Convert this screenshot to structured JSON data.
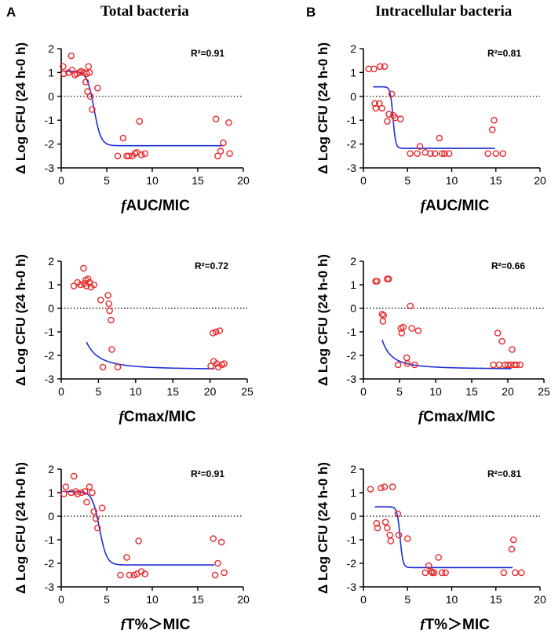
{
  "panel_labels": {
    "left": "A",
    "right": "B"
  },
  "column_titles": {
    "left": "Total bacteria",
    "right": "Intracellular bacteria"
  },
  "colors": {
    "points": "#e8292b",
    "fit": "#1f2fd6",
    "axis": "#000000"
  },
  "chart_data": [
    {
      "id": "A1",
      "type": "scatter",
      "xlabel_prefix": "f",
      "xlabel": "AUC/MIC",
      "ylabel": "Δ Log CFU (24 h-0 h)",
      "annotation": "R²=0.91",
      "xlim": [
        0,
        20
      ],
      "ylim": [
        -3,
        2
      ],
      "xticks": [
        0,
        5,
        10,
        15,
        20
      ],
      "yticks": [
        -3,
        -2,
        -1,
        0,
        1,
        2
      ],
      "x": [
        0.2,
        0.3,
        0.8,
        1.1,
        1.2,
        1.5,
        1.7,
        2.0,
        2.2,
        2.5,
        2.7,
        2.8,
        2.9,
        3.0,
        3.1,
        3.2,
        3.4,
        4.0,
        6.2,
        6.8,
        7.2,
        7.4,
        7.8,
        8.1,
        8.3,
        8.6,
        8.8,
        9.2,
        17.0,
        17.2,
        17.5,
        17.8,
        18.4,
        18.5
      ],
      "y": [
        1.25,
        0.95,
        1.0,
        1.7,
        1.1,
        0.9,
        0.95,
        1.0,
        1.05,
        1.0,
        0.6,
        0.95,
        0.2,
        1.25,
        1.0,
        0.0,
        -0.55,
        0.35,
        -2.5,
        -1.75,
        -2.5,
        -2.5,
        -2.5,
        -2.4,
        -2.35,
        -1.05,
        -2.45,
        -2.4,
        -0.95,
        -2.5,
        -2.3,
        -1.95,
        -1.1,
        -2.4
      ],
      "fit": {
        "model": "sigmoid",
        "top": 1.05,
        "bottom": -2.07,
        "x50": 3.6,
        "k": 2.6,
        "xmin": 0.3,
        "xmax": 17.8
      }
    },
    {
      "id": "A2",
      "type": "scatter",
      "xlabel_prefix": "f",
      "xlabel": "Cmax/MIC",
      "ylabel": "Δ Log CFU (24 h-0 h)",
      "annotation": "R²=0.72",
      "xlim": [
        0,
        25
      ],
      "ylim": [
        -3,
        2
      ],
      "xticks": [
        0,
        5,
        10,
        15,
        20,
        25
      ],
      "yticks": [
        -3,
        -2,
        -1,
        0,
        1,
        2
      ],
      "x": [
        1.7,
        2.2,
        2.6,
        3.0,
        3.1,
        3.3,
        3.4,
        3.6,
        3.8,
        4.0,
        4.4,
        5.3,
        5.6,
        6.3,
        6.4,
        6.5,
        6.7,
        6.8,
        7.6,
        20.1,
        20.4,
        20.5,
        20.8,
        20.9,
        21.1,
        21.3,
        21.6,
        21.9
      ],
      "y": [
        0.95,
        1.1,
        1.0,
        1.7,
        1.05,
        1.2,
        0.95,
        1.25,
        1.1,
        0.9,
        1.0,
        0.35,
        -2.5,
        0.55,
        0.2,
        -0.1,
        -0.5,
        -1.75,
        -2.5,
        -2.45,
        -1.05,
        -2.25,
        -1.0,
        -2.35,
        -2.5,
        -0.95,
        -2.4,
        -2.35
      ],
      "fit": {
        "model": "hyperbolic",
        "a": -2.6,
        "b": 13.5,
        "xmin": 3.4,
        "xmax": 20.6
      }
    },
    {
      "id": "A3",
      "type": "scatter",
      "xlabel_prefix": "f",
      "xlabel": "T%＞MIC",
      "ylabel": "Δ Log CFU (24 h-0 h)",
      "annotation": "R²=0.91",
      "xlim": [
        0,
        20
      ],
      "ylim": [
        -3,
        2
      ],
      "xticks": [
        0,
        5,
        10,
        15,
        20
      ],
      "yticks": [
        -3,
        -2,
        -1,
        0,
        1,
        2
      ],
      "x": [
        0.3,
        0.5,
        1.1,
        1.4,
        1.6,
        1.8,
        2.2,
        2.6,
        2.8,
        3.1,
        3.4,
        3.6,
        3.8,
        4.0,
        4.5,
        6.5,
        7.2,
        7.5,
        8.0,
        8.3,
        8.5,
        8.8,
        9.2,
        16.7,
        16.9,
        17.2,
        17.6,
        17.9
      ],
      "y": [
        0.95,
        1.25,
        1.0,
        1.7,
        1.05,
        0.95,
        1.0,
        1.05,
        0.6,
        1.25,
        1.0,
        0.2,
        -0.1,
        -0.5,
        0.35,
        -2.5,
        -1.75,
        -2.5,
        -2.5,
        -2.45,
        -1.05,
        -2.35,
        -2.45,
        -0.95,
        -2.5,
        -2.0,
        -1.1,
        -2.4
      ],
      "fit": {
        "model": "sigmoid",
        "top": 1.05,
        "bottom": -2.07,
        "x50": 4.2,
        "k": 2.5,
        "xmin": 0.3,
        "xmax": 16.8
      }
    },
    {
      "id": "B1",
      "type": "scatter",
      "xlabel_prefix": "f",
      "xlabel": "AUC/MIC",
      "ylabel": "Δ Log CFU (24 h-0 h)",
      "annotation": "R²=0.81",
      "xlim": [
        0,
        20
      ],
      "ylim": [
        -3,
        2
      ],
      "xticks": [
        0,
        5,
        10,
        15,
        20
      ],
      "yticks": [
        -3,
        -2,
        -1,
        0,
        1,
        2
      ],
      "x": [
        0.6,
        1.2,
        1.3,
        1.4,
        1.8,
        1.9,
        2.1,
        2.4,
        2.7,
        2.9,
        3.2,
        3.4,
        3.6,
        4.2,
        5.3,
        6.1,
        6.4,
        7.0,
        7.6,
        8.1,
        8.6,
        8.9,
        9.2,
        9.7,
        14.1,
        14.6,
        14.8,
        15.0,
        15.8
      ],
      "y": [
        1.15,
        1.15,
        -0.3,
        -0.5,
        -0.3,
        1.25,
        -0.5,
        1.25,
        -1.05,
        -0.75,
        0.1,
        -0.8,
        -0.9,
        -0.95,
        -2.4,
        -2.4,
        -2.1,
        -2.35,
        -2.4,
        -2.4,
        -1.75,
        -2.4,
        -2.4,
        -2.4,
        -2.4,
        -1.4,
        -1.0,
        -2.4,
        -2.4
      ],
      "fit": {
        "model": "sigmoid",
        "top": 0.4,
        "bottom": -2.18,
        "x50": 3.35,
        "k": 6.5,
        "xmin": 1.1,
        "xmax": 14.9
      }
    },
    {
      "id": "B2",
      "type": "scatter",
      "xlabel_prefix": "f",
      "xlabel": "Cmax/MIC",
      "ylabel": "Δ Log CFU (24 h-0 h)",
      "annotation": "R²=0.66",
      "xlim": [
        0,
        25
      ],
      "ylim": [
        -3,
        2
      ],
      "xticks": [
        0,
        5,
        10,
        15,
        20,
        25
      ],
      "yticks": [
        -3,
        -2,
        -1,
        0,
        1,
        2
      ],
      "x": [
        1.7,
        1.9,
        2.6,
        2.7,
        2.8,
        3.3,
        3.5,
        4.8,
        5.2,
        5.3,
        5.5,
        6.0,
        6.1,
        6.5,
        6.7,
        7.1,
        7.6,
        18.0,
        18.6,
        18.8,
        19.2,
        19.6,
        20.0,
        20.4,
        20.6,
        20.9,
        21.2,
        21.7
      ],
      "y": [
        1.15,
        1.15,
        -0.25,
        -0.55,
        -0.3,
        1.25,
        1.25,
        -2.4,
        -0.85,
        -1.05,
        -0.8,
        -2.1,
        -2.35,
        0.1,
        -0.85,
        -2.4,
        -0.95,
        -2.4,
        -1.05,
        -2.4,
        -1.4,
        -2.4,
        -2.4,
        -2.4,
        -1.75,
        -2.4,
        -2.4,
        -2.4
      ],
      "fit": {
        "model": "hyperbolic",
        "a": -2.58,
        "b": 8.4,
        "xmin": 2.6,
        "xmax": 20.5
      }
    },
    {
      "id": "B3",
      "type": "scatter",
      "xlabel_prefix": "f",
      "xlabel": "T%＞MIC",
      "ylabel": "Δ Log CFU (24 h-0 h)",
      "annotation": "R²=0.81",
      "xlim": [
        0,
        20
      ],
      "ylim": [
        -3,
        2
      ],
      "xticks": [
        0,
        5,
        10,
        15,
        20
      ],
      "yticks": [
        -3,
        -2,
        -1,
        0,
        1,
        2
      ],
      "x": [
        0.8,
        1.5,
        1.6,
        2.0,
        2.4,
        2.5,
        2.7,
        3.0,
        3.1,
        3.3,
        3.9,
        4.0,
        5.0,
        7.0,
        7.4,
        7.7,
        7.8,
        8.0,
        8.5,
        8.9,
        9.3,
        15.9,
        16.8,
        17.0,
        17.2,
        17.9
      ],
      "y": [
        1.15,
        -0.3,
        -0.5,
        1.2,
        1.25,
        -0.25,
        -0.5,
        -0.8,
        -1.05,
        1.25,
        0.1,
        -0.8,
        -0.95,
        -2.4,
        -2.1,
        -2.35,
        -2.4,
        -2.4,
        -1.75,
        -2.4,
        -2.4,
        -2.4,
        -1.4,
        -1.0,
        -2.4,
        -2.4
      ],
      "fit": {
        "model": "sigmoid",
        "top": 0.4,
        "bottom": -2.18,
        "x50": 4.15,
        "k": 6.0,
        "xmin": 1.3,
        "xmax": 16.9
      }
    }
  ]
}
